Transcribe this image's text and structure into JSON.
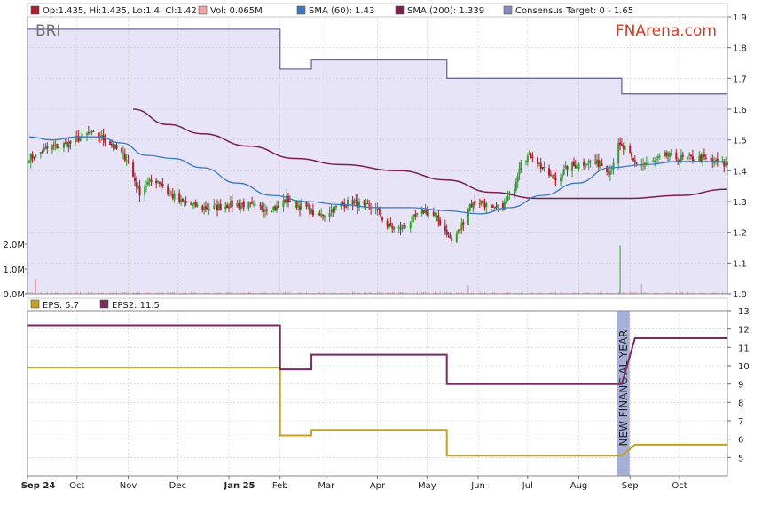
{
  "chart_data": [
    {
      "type": "candlestick",
      "ticker": "BRI",
      "watermark": "FNArena.com",
      "legend": {
        "ohlc": "Op:1.435, Hi:1.435, Lo:1.4, Cl:1.42",
        "vol": "Vol: 0.065M",
        "sma60": "SMA (60): 1.43",
        "sma200": "SMA (200): 1.339",
        "consensus": "Consensus Target: 0 - 1.65"
      },
      "colors": {
        "up": "#2e9e2e",
        "down": "#b01d2e",
        "sma60": "#3a78c0",
        "sma200": "#7a2050",
        "consensus": "#6a6aa0",
        "consensus_fill": "#e6e4f6",
        "volume": "#e68a9a",
        "grid": "#c9c9c9",
        "legend_ohlc": "#b01d2e",
        "legend_vol": "#f3a3a3",
        "legend_sma60": "#3a78c0",
        "legend_sma200": "#7a2050",
        "legend_consensus": "#8888bb"
      },
      "ylim": [
        1.0,
        1.9
      ],
      "yticks": [
        "1.0",
        "1.1",
        "1.2",
        "1.3",
        "1.4",
        "1.5",
        "1.6",
        "1.7",
        "1.8",
        "1.9"
      ],
      "volume_ticks": [
        "0.0M",
        "1.0M",
        "2.0M"
      ],
      "price_path": [
        [
          "2024-09-02",
          1.44
        ],
        [
          "2024-09-06",
          1.45
        ],
        [
          "2024-09-12",
          1.47
        ],
        [
          "2024-09-20",
          1.48
        ],
        [
          "2024-09-27",
          1.49
        ],
        [
          "2024-10-04",
          1.51
        ],
        [
          "2024-10-09",
          1.52
        ],
        [
          "2024-10-15",
          1.51
        ],
        [
          "2024-10-21",
          1.49
        ],
        [
          "2024-10-25",
          1.47
        ],
        [
          "2024-10-31",
          1.44
        ],
        [
          "2024-11-04",
          1.38
        ],
        [
          "2024-11-08",
          1.33
        ],
        [
          "2024-11-13",
          1.36
        ],
        [
          "2024-11-19",
          1.37
        ],
        [
          "2024-11-25",
          1.33
        ],
        [
          "2024-12-02",
          1.3
        ],
        [
          "2024-12-09",
          1.29
        ],
        [
          "2024-12-16",
          1.28
        ],
        [
          "2024-12-23",
          1.28
        ],
        [
          "2025-01-02",
          1.29
        ],
        [
          "2025-01-10",
          1.29
        ],
        [
          "2025-01-17",
          1.28
        ],
        [
          "2025-01-24",
          1.28
        ],
        [
          "2025-01-31",
          1.28
        ],
        [
          "2025-02-05",
          1.31
        ],
        [
          "2025-02-11",
          1.29
        ],
        [
          "2025-02-17",
          1.28
        ],
        [
          "2025-02-24",
          1.25
        ],
        [
          "2025-03-03",
          1.27
        ],
        [
          "2025-03-10",
          1.29
        ],
        [
          "2025-03-17",
          1.3
        ],
        [
          "2025-03-24",
          1.28
        ],
        [
          "2025-03-31",
          1.28
        ],
        [
          "2025-04-07",
          1.22
        ],
        [
          "2025-04-14",
          1.21
        ],
        [
          "2025-04-22",
          1.24
        ],
        [
          "2025-04-29",
          1.27
        ],
        [
          "2025-05-06",
          1.25
        ],
        [
          "2025-05-13",
          1.2
        ],
        [
          "2025-05-16",
          1.17
        ],
        [
          "2025-05-21",
          1.21
        ],
        [
          "2025-05-27",
          1.29
        ],
        [
          "2025-06-03",
          1.3
        ],
        [
          "2025-06-10",
          1.27
        ],
        [
          "2025-06-17",
          1.29
        ],
        [
          "2025-06-23",
          1.35
        ],
        [
          "2025-06-27",
          1.44
        ],
        [
          "2025-07-04",
          1.45
        ],
        [
          "2025-07-11",
          1.4
        ],
        [
          "2025-07-18",
          1.37
        ],
        [
          "2025-07-25",
          1.41
        ],
        [
          "2025-08-01",
          1.42
        ],
        [
          "2025-08-08",
          1.43
        ],
        [
          "2025-08-15",
          1.42
        ],
        [
          "2025-08-20",
          1.4
        ],
        [
          "2025-08-25",
          1.48
        ],
        [
          "2025-08-29",
          1.47
        ],
        [
          "2025-09-03",
          1.43
        ],
        [
          "2025-09-09",
          1.42
        ],
        [
          "2025-09-16",
          1.43
        ],
        [
          "2025-09-23",
          1.45
        ],
        [
          "2025-09-30",
          1.44
        ],
        [
          "2025-10-07",
          1.44
        ],
        [
          "2025-10-14",
          1.44
        ],
        [
          "2025-10-21",
          1.43
        ],
        [
          "2025-10-27",
          1.42
        ],
        [
          "2025-10-30",
          1.42
        ]
      ],
      "sma60": [
        [
          "2024-09-02",
          1.51
        ],
        [
          "2024-09-16",
          1.5
        ],
        [
          "2024-10-01",
          1.51
        ],
        [
          "2024-10-14",
          1.51
        ],
        [
          "2024-10-28",
          1.49
        ],
        [
          "2024-11-12",
          1.45
        ],
        [
          "2024-11-28",
          1.44
        ],
        [
          "2024-12-16",
          1.41
        ],
        [
          "2025-01-06",
          1.36
        ],
        [
          "2025-01-27",
          1.32
        ],
        [
          "2025-02-17",
          1.3
        ],
        [
          "2025-03-10",
          1.29
        ],
        [
          "2025-03-31",
          1.28
        ],
        [
          "2025-04-22",
          1.28
        ],
        [
          "2025-05-13",
          1.27
        ],
        [
          "2025-06-02",
          1.26
        ],
        [
          "2025-06-20",
          1.28
        ],
        [
          "2025-07-10",
          1.32
        ],
        [
          "2025-07-31",
          1.36
        ],
        [
          "2025-08-20",
          1.41
        ],
        [
          "2025-09-10",
          1.42
        ],
        [
          "2025-10-01",
          1.43
        ],
        [
          "2025-10-30",
          1.43
        ]
      ],
      "sma200": [
        [
          "2024-11-04",
          1.6
        ],
        [
          "2024-11-25",
          1.55
        ],
        [
          "2024-12-16",
          1.52
        ],
        [
          "2025-01-13",
          1.48
        ],
        [
          "2025-02-10",
          1.44
        ],
        [
          "2025-03-10",
          1.42
        ],
        [
          "2025-04-14",
          1.4
        ],
        [
          "2025-05-13",
          1.37
        ],
        [
          "2025-06-09",
          1.33
        ],
        [
          "2025-07-07",
          1.31
        ],
        [
          "2025-08-04",
          1.31
        ],
        [
          "2025-09-01",
          1.31
        ],
        [
          "2025-10-01",
          1.32
        ],
        [
          "2025-10-30",
          1.34
        ]
      ],
      "consensus_target": [
        [
          "2024-09-01",
          1.86
        ],
        [
          "2025-02-01",
          1.86
        ],
        [
          "2025-02-01",
          1.73
        ],
        [
          "2025-02-20",
          1.73
        ],
        [
          "2025-02-20",
          1.76
        ],
        [
          "2025-05-13",
          1.76
        ],
        [
          "2025-05-13",
          1.7
        ],
        [
          "2025-08-27",
          1.7
        ],
        [
          "2025-08-27",
          1.65
        ],
        [
          "2025-10-30",
          1.65
        ]
      ],
      "volume_spikes_m": [
        [
          "2024-09-06",
          0.6
        ],
        [
          "2025-05-26",
          0.35
        ],
        [
          "2025-08-26",
          1.95
        ],
        [
          "2025-09-08",
          0.4
        ]
      ]
    },
    {
      "type": "line",
      "legend": {
        "eps": "EPS: 5.7",
        "eps2": "EPS2: 11.5"
      },
      "colors": {
        "eps": "#c8a020",
        "eps2": "#7a2a60",
        "band": "#a6b0d6"
      },
      "ylim": [
        4,
        13
      ],
      "yticks": [
        "5",
        "6",
        "7",
        "8",
        "9",
        "10",
        "11",
        "12",
        "13"
      ],
      "band_label": "NEW FINANCIAL YEAR",
      "band_date": "2025-08-28",
      "series": [
        {
          "name": "EPS",
          "steps": [
            [
              "2024-09-01",
              9.9
            ],
            [
              "2025-02-01",
              9.9
            ],
            [
              "2025-02-01",
              6.2
            ],
            [
              "2025-02-20",
              6.2
            ],
            [
              "2025-02-20",
              6.5
            ],
            [
              "2025-05-13",
              6.5
            ],
            [
              "2025-05-13",
              5.1
            ],
            [
              "2025-08-27",
              5.1
            ],
            [
              "2025-09-04",
              5.7
            ],
            [
              "2025-10-30",
              5.7
            ]
          ]
        },
        {
          "name": "EPS2",
          "steps": [
            [
              "2024-09-01",
              12.2
            ],
            [
              "2025-02-01",
              12.2
            ],
            [
              "2025-02-01",
              9.8
            ],
            [
              "2025-02-20",
              9.8
            ],
            [
              "2025-02-20",
              10.6
            ],
            [
              "2025-05-13",
              10.6
            ],
            [
              "2025-05-13",
              9.0
            ],
            [
              "2025-08-27",
              9.0
            ],
            [
              "2025-09-04",
              11.5
            ],
            [
              "2025-10-30",
              11.5
            ]
          ]
        }
      ]
    }
  ],
  "x_axis": {
    "range": [
      "2024-09-01",
      "2025-10-30"
    ],
    "ticks": [
      {
        "label": "Sep 24",
        "date": "2024-09-01",
        "bold": true
      },
      {
        "label": "Oct",
        "date": "2024-10-01"
      },
      {
        "label": "Nov",
        "date": "2024-11-01"
      },
      {
        "label": "Dec",
        "date": "2024-12-01"
      },
      {
        "label": "Jan 25",
        "date": "2025-01-01",
        "bold": true
      },
      {
        "label": "Feb",
        "date": "2025-02-01"
      },
      {
        "label": "Mar",
        "date": "2025-03-01"
      },
      {
        "label": "Apr",
        "date": "2025-04-01"
      },
      {
        "label": "May",
        "date": "2025-05-01"
      },
      {
        "label": "Jun",
        "date": "2025-06-01"
      },
      {
        "label": "Jul",
        "date": "2025-07-01"
      },
      {
        "label": "Aug",
        "date": "2025-08-01"
      },
      {
        "label": "Sep",
        "date": "2025-09-01"
      },
      {
        "label": "Oct",
        "date": "2025-10-01"
      }
    ]
  }
}
